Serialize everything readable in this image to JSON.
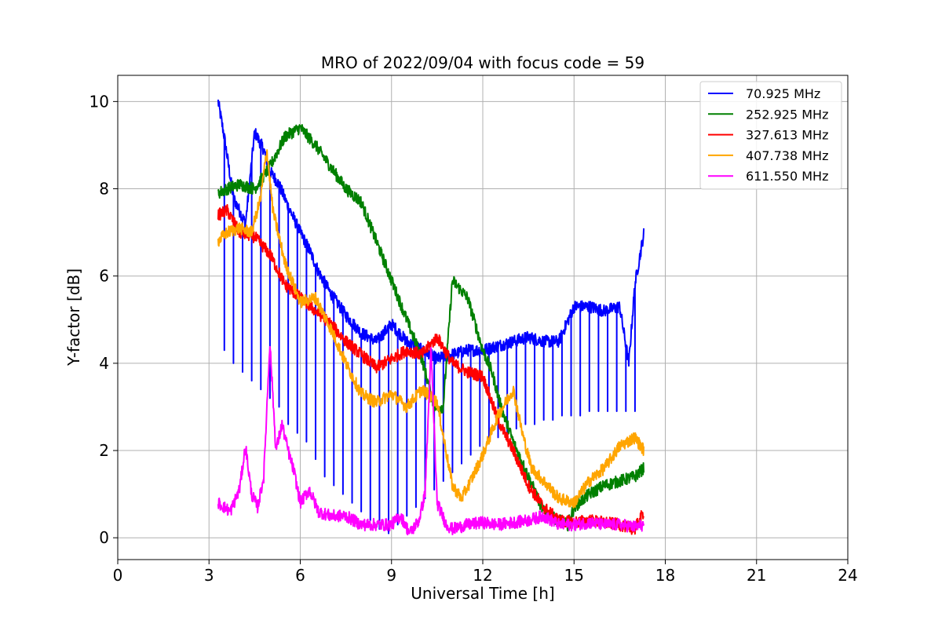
{
  "chart_data": {
    "type": "line",
    "title": "MRO of 2022/09/04 with focus code = 59",
    "xlabel": "Universal Time [h]",
    "ylabel": "Y-factor [dB]",
    "xlim": [
      0,
      24
    ],
    "ylim": [
      -0.5,
      10.6
    ],
    "xticks": [
      0,
      3,
      6,
      9,
      12,
      15,
      18,
      21,
      24
    ],
    "yticks": [
      0,
      2,
      4,
      6,
      8,
      10
    ],
    "grid": true,
    "legend_placement": "top-right",
    "series": [
      {
        "name": "  70.925 MHz",
        "color": "#0000ff",
        "x": [
          3.3,
          3.5,
          3.8,
          4.2,
          4.5,
          4.8,
          5.0,
          5.3,
          5.6,
          6.0,
          6.3,
          6.6,
          7.0,
          7.5,
          8.0,
          8.5,
          9.0,
          9.5,
          10.0,
          10.5,
          11.0,
          11.5,
          12.0,
          12.5,
          13.0,
          13.5,
          14.0,
          14.5,
          15.0,
          15.5,
          16.0,
          16.5,
          16.8,
          17.0,
          17.3
        ],
        "y": [
          10.0,
          9.2,
          7.8,
          7.2,
          9.3,
          8.9,
          8.4,
          8.1,
          7.6,
          7.0,
          6.6,
          6.1,
          5.6,
          5.1,
          4.7,
          4.5,
          4.9,
          4.5,
          4.3,
          4.1,
          4.2,
          4.3,
          4.3,
          4.4,
          4.5,
          4.6,
          4.5,
          4.5,
          5.3,
          5.3,
          5.2,
          5.3,
          4.0,
          5.8,
          7.0
        ],
        "dips": {
          "period_h": 0.3,
          "start_h": 3.5,
          "end_h": 17.3,
          "min_values": [
            4.3,
            4.0,
            3.8,
            3.6,
            3.4,
            3.2,
            3.0,
            2.6,
            2.4,
            2.2,
            1.8,
            1.4,
            1.2,
            1.0,
            0.8,
            0.6,
            0.4,
            0.2,
            0.1,
            0.3,
            0.5,
            0.7,
            0.9,
            1.1,
            1.3,
            1.5,
            1.7,
            1.9,
            2.1,
            2.2,
            2.3,
            2.4,
            2.5,
            2.6,
            2.6,
            2.7,
            2.7,
            2.8,
            2.8,
            2.8,
            2.9,
            2.9,
            2.9,
            2.9,
            2.9,
            2.9
          ]
        }
      },
      {
        "name": "252.925 MHz",
        "color": "#008000",
        "x": [
          3.3,
          3.6,
          4.0,
          4.5,
          5.0,
          5.5,
          6.0,
          6.5,
          7.0,
          7.5,
          8.0,
          8.5,
          9.0,
          9.5,
          10.0,
          10.4,
          10.7,
          11.0,
          11.5,
          12.0,
          12.3,
          12.6,
          13.0,
          13.5,
          14.0,
          14.5,
          14.8,
          15.0,
          15.5,
          16.0,
          16.5,
          17.0,
          17.3
        ],
        "y": [
          7.9,
          8.0,
          8.1,
          8.0,
          8.5,
          9.2,
          9.4,
          9.0,
          8.5,
          8.0,
          7.7,
          6.8,
          5.9,
          5.0,
          4.1,
          3.0,
          3.0,
          5.9,
          5.5,
          4.3,
          3.8,
          3.0,
          2.2,
          1.4,
          0.6,
          0.4,
          0.3,
          0.7,
          1.0,
          1.2,
          1.3,
          1.4,
          1.6
        ]
      },
      {
        "name": "327.613 MHz",
        "color": "#ff0000",
        "x": [
          3.3,
          3.6,
          4.0,
          4.5,
          5.0,
          5.5,
          6.0,
          6.5,
          7.0,
          7.5,
          8.0,
          8.5,
          9.0,
          9.5,
          10.0,
          10.5,
          11.0,
          11.5,
          12.0,
          12.5,
          13.0,
          13.5,
          14.0,
          14.5,
          15.0,
          15.5,
          16.0,
          16.5,
          17.0,
          17.3
        ],
        "y": [
          7.4,
          7.5,
          7.0,
          6.9,
          6.5,
          5.8,
          5.5,
          5.2,
          4.9,
          4.5,
          4.2,
          3.9,
          4.1,
          4.3,
          4.2,
          4.6,
          4.0,
          3.8,
          3.7,
          2.7,
          2.0,
          1.2,
          0.7,
          0.4,
          0.35,
          0.4,
          0.35,
          0.3,
          0.2,
          0.6
        ]
      },
      {
        "name": "407.738 MHz",
        "color": "#ffa500",
        "x": [
          3.3,
          3.6,
          4.0,
          4.4,
          4.7,
          4.9,
          5.1,
          5.5,
          6.0,
          6.5,
          7.0,
          7.5,
          8.0,
          8.5,
          9.0,
          9.5,
          10.0,
          10.5,
          11.0,
          11.3,
          11.6,
          12.0,
          12.5,
          13.0,
          13.3,
          13.6,
          14.0,
          14.5,
          15.0,
          15.5,
          16.0,
          16.5,
          17.0,
          17.3
        ],
        "y": [
          6.8,
          7.0,
          7.1,
          7.0,
          7.8,
          8.9,
          7.5,
          6.3,
          5.4,
          5.5,
          4.8,
          4.0,
          3.3,
          3.1,
          3.3,
          3.0,
          3.4,
          3.1,
          1.2,
          0.9,
          1.3,
          1.9,
          2.8,
          3.4,
          2.4,
          1.6,
          1.3,
          0.9,
          0.8,
          1.3,
          1.6,
          2.1,
          2.3,
          2.0
        ]
      },
      {
        "name": "611.550 MHz",
        "color": "#ff00ff",
        "x": [
          3.3,
          3.7,
          4.0,
          4.2,
          4.4,
          4.6,
          4.8,
          5.0,
          5.2,
          5.4,
          5.6,
          5.8,
          6.0,
          6.3,
          6.6,
          7.0,
          7.5,
          8.0,
          8.5,
          9.0,
          9.3,
          9.6,
          9.9,
          10.1,
          10.3,
          10.5,
          10.8,
          11.0,
          11.5,
          12.0,
          12.5,
          13.0,
          13.5,
          14.0,
          14.5,
          15.0,
          15.5,
          16.0,
          16.5,
          17.0,
          17.3
        ],
        "y": [
          0.8,
          0.6,
          1.1,
          2.1,
          1.0,
          0.7,
          1.4,
          4.5,
          2.0,
          2.6,
          2.0,
          1.5,
          0.8,
          1.1,
          0.6,
          0.5,
          0.5,
          0.3,
          0.3,
          0.3,
          0.5,
          0.1,
          0.4,
          1.0,
          4.3,
          0.8,
          0.3,
          0.2,
          0.3,
          0.35,
          0.3,
          0.35,
          0.4,
          0.5,
          0.3,
          0.3,
          0.35,
          0.3,
          0.3,
          0.25,
          0.3
        ]
      }
    ]
  }
}
